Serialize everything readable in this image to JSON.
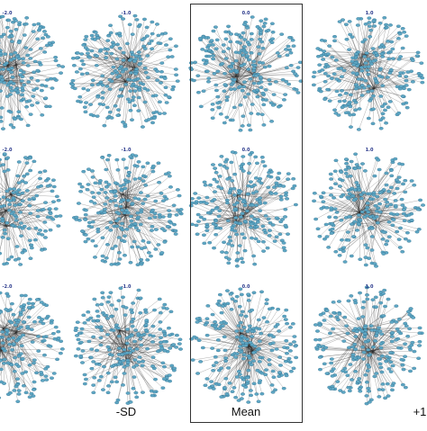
{
  "figure": {
    "colors": {
      "node": "#5ea7c4",
      "node_edge": "#2e6f8e",
      "edge": "#2b2b2b"
    },
    "columns": [
      {
        "label": "",
        "panels": [
          "-2.0",
          "-2.0",
          "-2.0"
        ]
      },
      {
        "label": "-SD",
        "panels": [
          "-1.0",
          "-1.0",
          "-1.0"
        ]
      },
      {
        "label": "Mean",
        "panels": [
          "0.0",
          "0.0",
          "0.0"
        ],
        "boxed": true
      },
      {
        "label": "+1",
        "panels": [
          "1.0",
          "1.0",
          "1.0"
        ]
      }
    ]
  }
}
